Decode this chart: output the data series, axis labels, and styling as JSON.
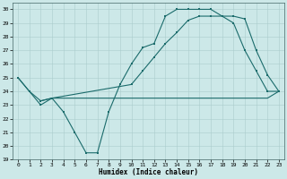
{
  "xlabel": "Humidex (Indice chaleur)",
  "xlim": [
    -0.5,
    23.5
  ],
  "ylim": [
    19,
    30.5
  ],
  "yticks": [
    19,
    20,
    21,
    22,
    23,
    24,
    25,
    26,
    27,
    28,
    29,
    30
  ],
  "xticks": [
    0,
    1,
    2,
    3,
    4,
    5,
    6,
    7,
    8,
    9,
    10,
    11,
    12,
    13,
    14,
    15,
    16,
    17,
    18,
    19,
    20,
    21,
    22,
    23
  ],
  "background_color": "#cce8e8",
  "grid_color": "#aacccc",
  "line_color": "#1a6b6b",
  "line1_x": [
    0,
    1,
    2,
    3,
    4,
    5,
    6,
    7,
    8,
    9,
    10,
    11,
    12,
    13,
    14,
    15,
    16,
    17,
    18,
    19,
    20,
    21,
    22,
    23
  ],
  "line1_y": [
    25,
    24,
    23,
    23.5,
    22.5,
    21,
    19.5,
    19.5,
    22.5,
    24.5,
    26,
    27.2,
    27.5,
    29.5,
    30,
    30,
    30,
    30,
    29.5,
    29,
    27,
    25.5,
    24,
    24
  ],
  "line2_x": [
    0,
    1,
    2,
    3,
    4,
    10,
    19,
    20,
    21,
    22,
    23
  ],
  "line2_y": [
    25,
    24,
    23.3,
    23.5,
    23.5,
    23.5,
    23.5,
    23.5,
    23.5,
    23.5,
    24
  ],
  "line3_x": [
    2,
    3,
    10,
    11,
    12,
    13,
    14,
    15,
    16,
    17,
    18,
    19,
    20,
    21,
    22,
    23
  ],
  "line3_y": [
    23.3,
    23.5,
    24.5,
    25.5,
    26.5,
    27.5,
    28.3,
    29.2,
    29.5,
    29.5,
    29.5,
    29.5,
    29.3,
    27,
    25.2,
    24
  ],
  "marker_size": 2,
  "linewidth": 0.8
}
